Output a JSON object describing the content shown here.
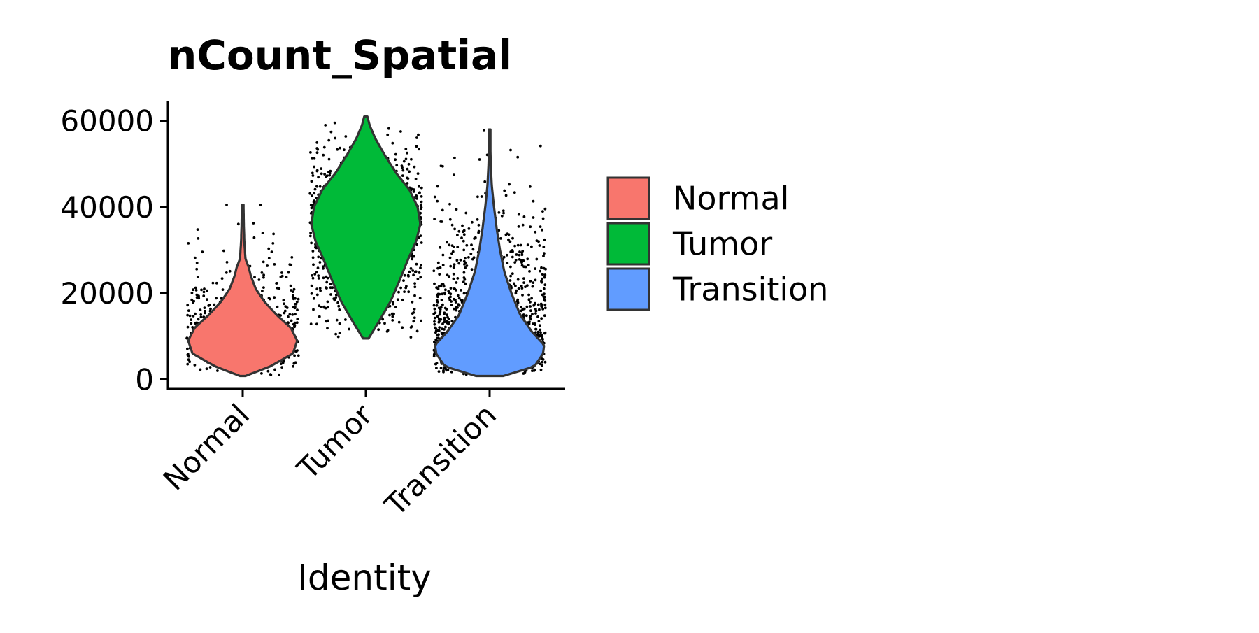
{
  "chart_data": {
    "type": "violin",
    "title": "nCount_Spatial",
    "xlabel": "Identity",
    "ylabel": "",
    "categories": [
      "Normal",
      "Tumor",
      "Transition"
    ],
    "y_ticks": [
      0,
      20000,
      40000,
      60000
    ],
    "y_tick_labels": [
      "0",
      "20000",
      "40000",
      "60000"
    ],
    "ylim": [
      -2200,
      64500
    ],
    "grid": false,
    "legend": {
      "position": "right",
      "entries": [
        "Normal",
        "Tumor",
        "Transition"
      ]
    },
    "colors": {
      "Normal": "#F8766D",
      "Tumor": "#00BA38",
      "Transition": "#619CFF",
      "points": "#000000",
      "outline": "#333333",
      "axis": "#000000"
    },
    "series": [
      {
        "name": "Normal",
        "min": 800,
        "max": 40500,
        "mode": 9000,
        "approx_points": 650,
        "density_profile": [
          [
            800,
            0.05
          ],
          [
            3000,
            0.5
          ],
          [
            6000,
            0.92
          ],
          [
            9000,
            1.0
          ],
          [
            12000,
            0.88
          ],
          [
            15000,
            0.62
          ],
          [
            18000,
            0.4
          ],
          [
            21000,
            0.24
          ],
          [
            24000,
            0.15
          ],
          [
            26000,
            0.11
          ],
          [
            28000,
            0.05
          ],
          [
            32000,
            0.03
          ],
          [
            36000,
            0.02
          ],
          [
            40500,
            0.015
          ]
        ]
      },
      {
        "name": "Tumor",
        "min": 9500,
        "max": 61000,
        "mode": 37000,
        "approx_points": 900,
        "density_profile": [
          [
            9500,
            0.05
          ],
          [
            13000,
            0.22
          ],
          [
            18000,
            0.45
          ],
          [
            23000,
            0.62
          ],
          [
            28000,
            0.78
          ],
          [
            32000,
            0.92
          ],
          [
            36000,
            1.0
          ],
          [
            40000,
            0.95
          ],
          [
            44000,
            0.8
          ],
          [
            48000,
            0.55
          ],
          [
            52000,
            0.35
          ],
          [
            56000,
            0.17
          ],
          [
            59000,
            0.07
          ],
          [
            61000,
            0.03
          ]
        ]
      },
      {
        "name": "Transition",
        "min": 800,
        "max": 58000,
        "mode": 7500,
        "approx_points": 1100,
        "density_profile": [
          [
            800,
            0.25
          ],
          [
            3000,
            0.82
          ],
          [
            6000,
            0.98
          ],
          [
            8000,
            1.0
          ],
          [
            11000,
            0.78
          ],
          [
            15000,
            0.56
          ],
          [
            20000,
            0.4
          ],
          [
            25000,
            0.27
          ],
          [
            30000,
            0.19
          ],
          [
            35000,
            0.13
          ],
          [
            40000,
            0.08
          ],
          [
            45000,
            0.04
          ],
          [
            50000,
            0.02
          ],
          [
            55000,
            0.012
          ],
          [
            58000,
            0.008
          ]
        ]
      }
    ]
  }
}
